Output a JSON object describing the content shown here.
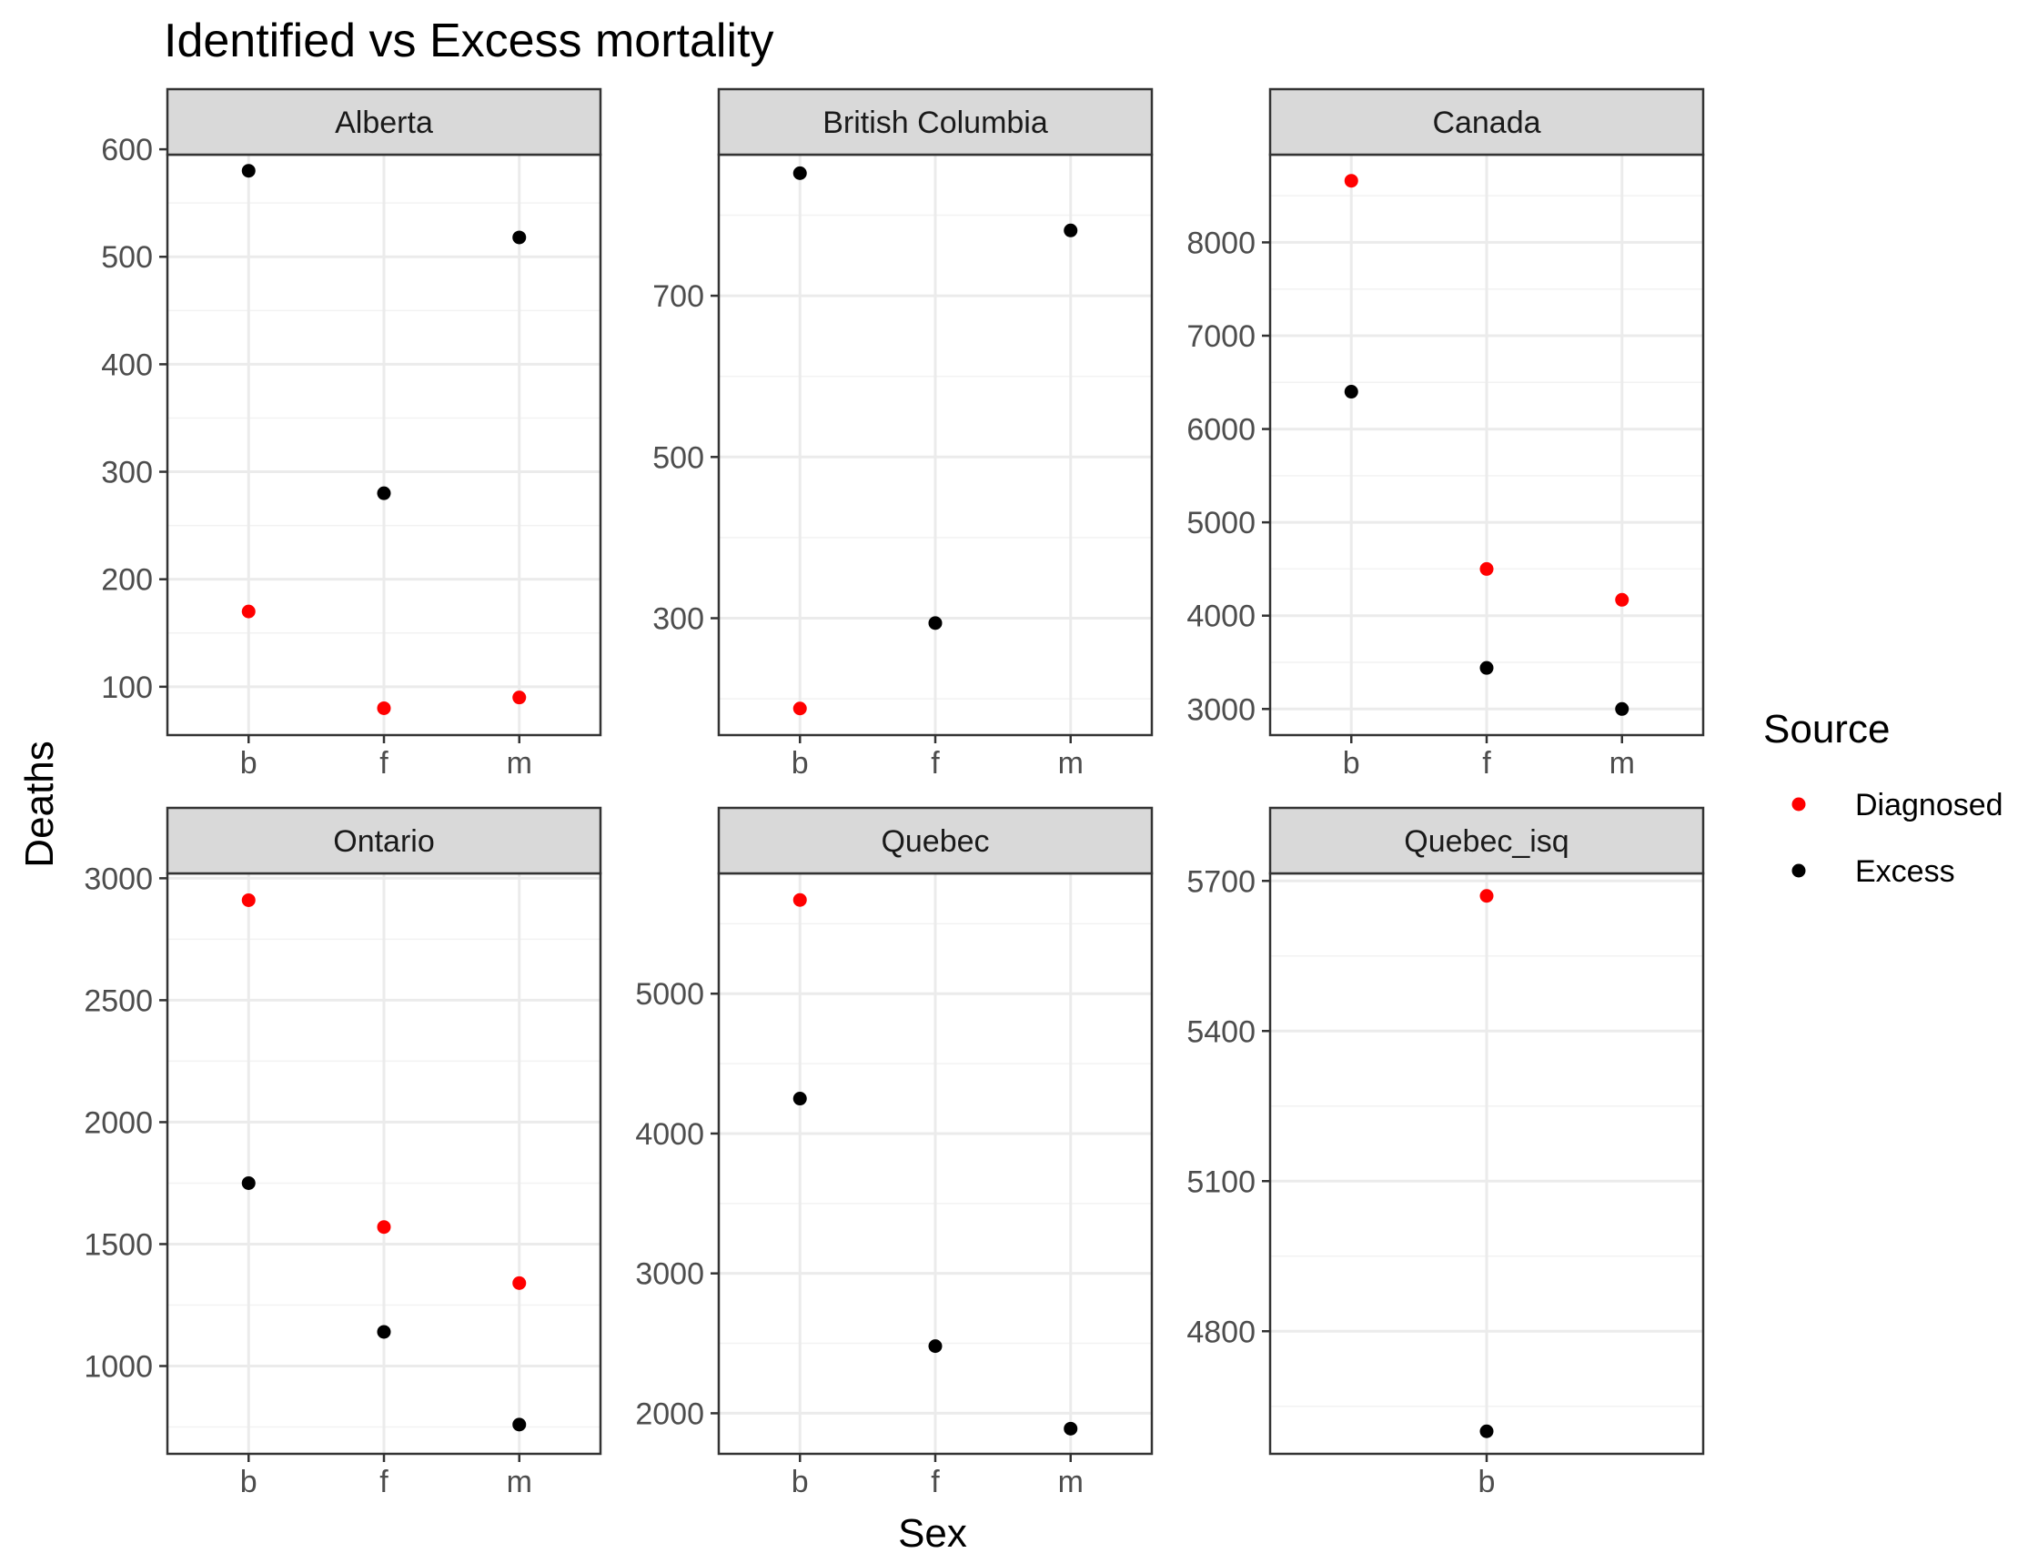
{
  "chart_data": {
    "type": "scatter",
    "title": "Identified vs Excess mortality",
    "xlabel": "Sex",
    "ylabel": "Deaths",
    "grid": true,
    "legend": {
      "title": "Source",
      "position": "right",
      "entries": [
        {
          "name": "Diagnosed",
          "color": "#ff0000"
        },
        {
          "name": "Excess",
          "color": "#000000"
        }
      ]
    },
    "panels": [
      {
        "name": "Alberta",
        "categories": [
          "b",
          "f",
          "m"
        ],
        "ylim": [
          55,
          595
        ],
        "yticks": [
          100,
          200,
          300,
          400,
          500,
          600
        ],
        "series": [
          {
            "name": "Diagnosed",
            "values": [
              170,
              80,
              90
            ]
          },
          {
            "name": "Excess",
            "values": [
              580,
              280,
              518
            ]
          }
        ]
      },
      {
        "name": "British Columbia",
        "categories": [
          "b",
          "f",
          "m"
        ],
        "ylim": [
          155,
          875
        ],
        "yticks": [
          300,
          500,
          700
        ],
        "series": [
          {
            "name": "Diagnosed",
            "values": [
              188,
              null,
              null
            ]
          },
          {
            "name": "Excess",
            "values": [
              852,
              294,
              781
            ]
          }
        ]
      },
      {
        "name": "Canada",
        "categories": [
          "b",
          "f",
          "m"
        ],
        "ylim": [
          2720,
          8940
        ],
        "yticks": [
          3000,
          4000,
          5000,
          6000,
          7000,
          8000
        ],
        "series": [
          {
            "name": "Diagnosed",
            "values": [
              8660,
              4500,
              4170
            ]
          },
          {
            "name": "Excess",
            "values": [
              6400,
              3440,
              3000
            ]
          }
        ]
      },
      {
        "name": "Ontario",
        "categories": [
          "b",
          "f",
          "m"
        ],
        "ylim": [
          640,
          3020
        ],
        "yticks": [
          1000,
          1500,
          2000,
          2500,
          3000
        ],
        "series": [
          {
            "name": "Diagnosed",
            "values": [
              2910,
              1570,
              1340
            ]
          },
          {
            "name": "Excess",
            "values": [
              1750,
              1140,
              760
            ]
          }
        ]
      },
      {
        "name": "Quebec",
        "categories": [
          "b",
          "f",
          "m"
        ],
        "ylim": [
          1710,
          5860
        ],
        "yticks": [
          2000,
          3000,
          4000,
          5000
        ],
        "series": [
          {
            "name": "Diagnosed",
            "values": [
              5670,
              null,
              null
            ]
          },
          {
            "name": "Excess",
            "values": [
              4250,
              2480,
              1890
            ]
          }
        ]
      },
      {
        "name": "Quebec_isq",
        "categories": [
          "b"
        ],
        "ylim": [
          4555,
          5715
        ],
        "yticks": [
          4800,
          5100,
          5400,
          5700
        ],
        "series": [
          {
            "name": "Diagnosed",
            "values": [
              5670
            ]
          },
          {
            "name": "Excess",
            "values": [
              4600
            ]
          }
        ]
      }
    ]
  }
}
